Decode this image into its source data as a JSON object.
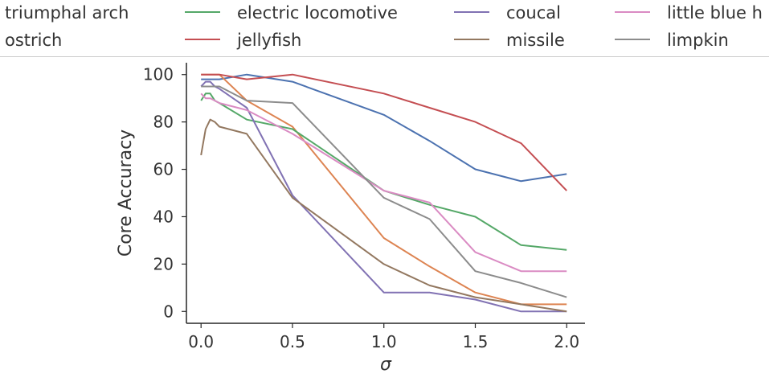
{
  "chart_data": {
    "type": "line",
    "title": "",
    "xlabel": "σ",
    "ylabel": "Core Accuracy",
    "xlim": [
      -0.08,
      2.1
    ],
    "ylim": [
      -5,
      105
    ],
    "xticks": [
      0.0,
      0.5,
      1.0,
      1.5,
      2.0
    ],
    "xtick_labels": [
      "0.0",
      "0.5",
      "1.0",
      "1.5",
      "2.0"
    ],
    "yticks": [
      0,
      20,
      40,
      60,
      80,
      100
    ],
    "ytick_labels": [
      "0",
      "20",
      "40",
      "60",
      "80",
      "100"
    ],
    "grid": false,
    "legend_position": "top",
    "series": [
      {
        "name": "triumphal arch",
        "color": "#4c72b0",
        "x": [
          0.0,
          0.025,
          0.05,
          0.075,
          0.1,
          0.25,
          0.5,
          1.0,
          1.25,
          1.5,
          1.75,
          2.0
        ],
        "y": [
          98,
          98,
          98,
          98,
          98,
          100,
          97,
          83,
          72,
          60,
          55,
          58
        ]
      },
      {
        "name": "ostrich",
        "color": "#dd8452",
        "x": [
          0.0,
          0.025,
          0.05,
          0.075,
          0.1,
          0.25,
          0.5,
          1.0,
          1.25,
          1.5,
          1.75,
          2.0
        ],
        "y": [
          100,
          100,
          100,
          100,
          100,
          89,
          78,
          31,
          19,
          8,
          3,
          3
        ]
      },
      {
        "name": "electric locomotive",
        "color": "#55a868",
        "x": [
          0.0,
          0.025,
          0.05,
          0.075,
          0.1,
          0.25,
          0.5,
          1.0,
          1.25,
          1.5,
          1.75,
          2.0
        ],
        "y": [
          89,
          92,
          92,
          89,
          88,
          81,
          77,
          51,
          45,
          40,
          28,
          26
        ]
      },
      {
        "name": "jellyfish",
        "color": "#c44e52",
        "x": [
          0.0,
          0.025,
          0.05,
          0.075,
          0.1,
          0.25,
          0.5,
          1.0,
          1.25,
          1.5,
          1.75,
          2.0
        ],
        "y": [
          100,
          100,
          100,
          100,
          100,
          98,
          100,
          92,
          86,
          80,
          71,
          51
        ]
      },
      {
        "name": "coucal",
        "color": "#8172b3",
        "x": [
          0.0,
          0.025,
          0.05,
          0.075,
          0.1,
          0.25,
          0.5,
          1.0,
          1.25,
          1.5,
          1.75,
          2.0
        ],
        "y": [
          95,
          97,
          97,
          95,
          94,
          86,
          49,
          8,
          8,
          5,
          0,
          0
        ]
      },
      {
        "name": "missile",
        "color": "#937860",
        "x": [
          0.0,
          0.025,
          0.05,
          0.075,
          0.1,
          0.25,
          0.5,
          1.0,
          1.25,
          1.5,
          1.75,
          2.0
        ],
        "y": [
          66,
          77,
          81,
          80,
          78,
          75,
          48,
          20,
          11,
          6,
          3,
          0
        ]
      },
      {
        "name": "little blue heron",
        "color": "#da8bc3",
        "x": [
          0.0,
          0.025,
          0.05,
          0.075,
          0.1,
          0.25,
          0.5,
          1.0,
          1.25,
          1.5,
          1.75,
          2.0
        ],
        "y": [
          92,
          90,
          90,
          89,
          88,
          85,
          75,
          51,
          46,
          25,
          17,
          17
        ]
      },
      {
        "name": "limpkin",
        "color": "#8c8c8c",
        "x": [
          0.0,
          0.025,
          0.05,
          0.075,
          0.1,
          0.25,
          0.5,
          1.0,
          1.25,
          1.5,
          1.75,
          2.0
        ],
        "y": [
          95,
          95,
          95,
          95,
          95,
          89,
          88,
          48,
          39,
          17,
          12,
          6
        ]
      }
    ],
    "legend_labels": [
      "triumphal arch",
      "electric locomotive",
      "coucal",
      "little blue h",
      "ostrich",
      "jellyfish",
      "missile",
      "limpkin"
    ]
  }
}
